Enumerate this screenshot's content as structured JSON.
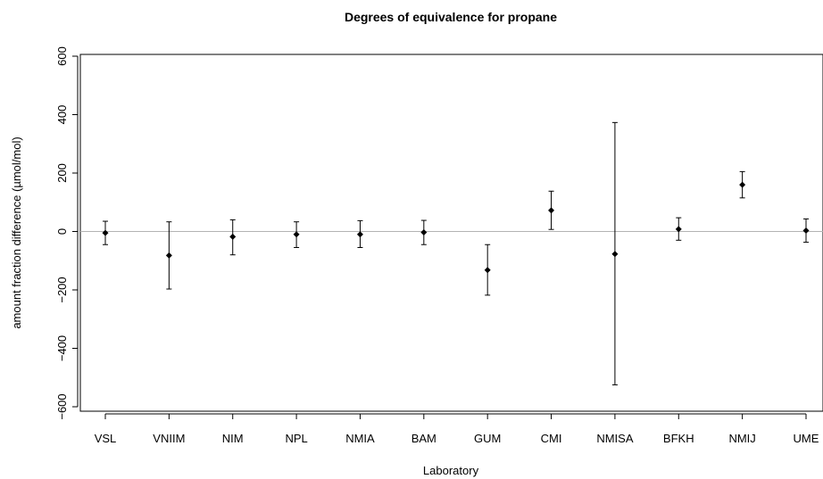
{
  "chart_data": {
    "type": "scatter",
    "title": "Degrees of equivalence for propane",
    "xlabel": "Laboratory",
    "ylabel": "amount fraction difference (µmol/mol)",
    "ylim": [
      -600,
      600
    ],
    "yticks": [
      -600,
      -400,
      -200,
      0,
      200,
      400,
      600
    ],
    "ytick_labels": [
      "−600",
      "−400",
      "−200",
      "0",
      "200",
      "400",
      "600"
    ],
    "reference_line": 0,
    "grid": false,
    "categories": [
      "VSL",
      "VNIIM",
      "NIM",
      "NPL",
      "NMIA",
      "BAM",
      "GUM",
      "CMI",
      "NMISA",
      "BFKH",
      "NMIJ",
      "UME"
    ],
    "series": [
      {
        "values": [
          -5,
          -82,
          -18,
          -10,
          -10,
          -3,
          -132,
          72,
          -77,
          8,
          160,
          3
        ],
        "lower": [
          -45,
          -197,
          -80,
          -55,
          -55,
          -45,
          -218,
          7,
          -525,
          -30,
          115,
          -37
        ],
        "upper": [
          35,
          33,
          40,
          33,
          37,
          38,
          -45,
          138,
          373,
          47,
          205,
          43
        ]
      }
    ]
  }
}
